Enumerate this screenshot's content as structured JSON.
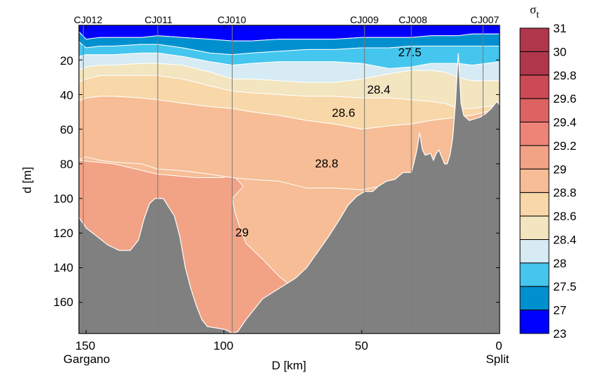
{
  "chart_data": {
    "type": "heatmap",
    "subtype": "filled-contour-section",
    "xlabel": "D [km]",
    "ylabel": "d [m]",
    "xlim": [
      152.6,
      0
    ],
    "ylim": [
      0,
      178
    ],
    "x_ticks": [
      "150",
      "100",
      "50",
      "0"
    ],
    "x_tick_values": [
      150,
      100,
      50,
      0
    ],
    "x_end_labels": {
      "left": "Gargano",
      "right": "Split"
    },
    "y_ticks": [
      "20",
      "40",
      "60",
      "80",
      "100",
      "120",
      "140",
      "160"
    ],
    "y_tick_values": [
      20,
      40,
      60,
      80,
      100,
      120,
      140,
      160
    ],
    "stations": [
      {
        "name": "CJ012",
        "D": 151
      },
      {
        "name": "CJ011",
        "D": 124
      },
      {
        "name": "CJ010",
        "D": 97
      },
      {
        "name": "CJ009",
        "D": 49
      },
      {
        "name": "CJ008",
        "D": 32
      },
      {
        "name": "CJ007",
        "D": 6
      }
    ],
    "contour_labels": [
      {
        "text": "27.5",
        "D": 31,
        "d": 13
      },
      {
        "text": "28.4",
        "D": 43,
        "d": 35
      },
      {
        "text": "28.6",
        "D": 55,
        "d": 50
      },
      {
        "text": "28.8",
        "D": 61,
        "d": 80
      },
      {
        "text": "29",
        "D": 92,
        "d": 120
      }
    ],
    "colorbar": {
      "title": "σt",
      "title_main": "σ",
      "title_sub": "t",
      "tick_labels": [
        "31",
        "30",
        "29.8",
        "29.6",
        "29.4",
        "29.2",
        "29",
        "28.8",
        "28.6",
        "28.4",
        "28",
        "27.5",
        "27",
        "23"
      ],
      "levels": [
        23,
        27,
        27.5,
        28,
        28.4,
        28.6,
        28.8,
        29,
        29.2,
        29.4,
        29.6,
        29.8,
        30,
        31
      ],
      "colors": [
        "#0000ff",
        "#0090d0",
        "#44c6ee",
        "#d6ebf3",
        "#f2e5bf",
        "#f8d7a8",
        "#f6bd96",
        "#f2a285",
        "#ee8478",
        "#dd6262",
        "#cc4a55",
        "#b0374b"
      ]
    },
    "bathymetry_color": "#808080"
  }
}
